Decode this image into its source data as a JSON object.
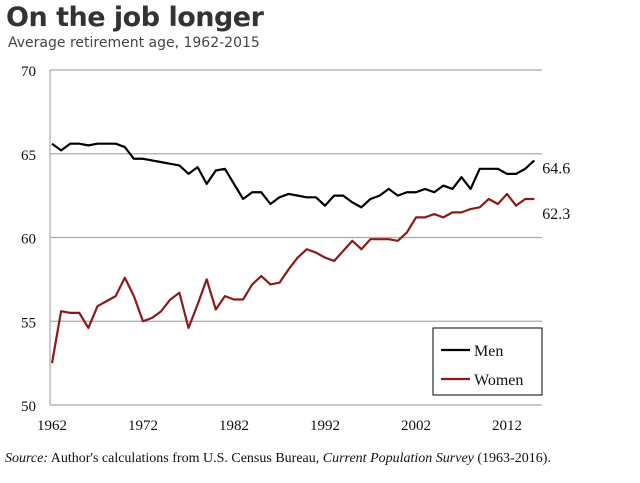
{
  "title": "On the job longer",
  "subtitle": "Average retirement age, 1962-2015",
  "source": {
    "label": "Source:",
    "text1": " Author's calculations from U.S. Census Bureau, ",
    "publication": "Current Population Survey",
    "text2": " (1963-2016)."
  },
  "chart_data": {
    "type": "line",
    "title": "On the job longer",
    "subtitle": "Average retirement age, 1962-2015",
    "xlabel": "",
    "ylabel": "",
    "xlim": [
      1962,
      2015
    ],
    "ylim": [
      50,
      70
    ],
    "xticks": [
      1962,
      1972,
      1982,
      1992,
      2002,
      2012
    ],
    "yticks": [
      50,
      55,
      60,
      65,
      70
    ],
    "grid": "horizontal",
    "legend": "bottom-right",
    "x": [
      1962,
      1963,
      1964,
      1965,
      1966,
      1967,
      1968,
      1969,
      1970,
      1971,
      1972,
      1973,
      1974,
      1975,
      1976,
      1977,
      1978,
      1979,
      1980,
      1981,
      1982,
      1983,
      1984,
      1985,
      1986,
      1987,
      1988,
      1989,
      1990,
      1991,
      1992,
      1993,
      1994,
      1995,
      1996,
      1997,
      1998,
      1999,
      2000,
      2001,
      2002,
      2003,
      2004,
      2005,
      2006,
      2007,
      2008,
      2009,
      2010,
      2011,
      2012,
      2013,
      2014,
      2015
    ],
    "series": [
      {
        "name": "Men",
        "color": "#000000",
        "end_label": "64.6",
        "values": [
          65.6,
          65.2,
          65.6,
          65.6,
          65.5,
          65.6,
          65.6,
          65.6,
          65.4,
          64.7,
          64.7,
          64.6,
          64.5,
          64.4,
          64.3,
          63.8,
          64.2,
          63.2,
          64.0,
          64.1,
          63.2,
          62.3,
          62.7,
          62.7,
          62.0,
          62.4,
          62.6,
          62.5,
          62.4,
          62.4,
          61.9,
          62.5,
          62.5,
          62.1,
          61.8,
          62.3,
          62.5,
          62.9,
          62.5,
          62.7,
          62.7,
          62.9,
          62.7,
          63.1,
          62.9,
          63.6,
          62.9,
          64.1,
          64.1,
          64.1,
          63.8,
          63.8,
          64.1,
          64.6
        ]
      },
      {
        "name": "Women",
        "color": "#8b1a1a",
        "end_label": "62.3",
        "values": [
          52.5,
          55.6,
          55.5,
          55.5,
          54.6,
          55.9,
          56.2,
          56.5,
          57.6,
          56.5,
          55.0,
          55.2,
          55.6,
          56.3,
          56.7,
          54.6,
          56.0,
          57.5,
          55.7,
          56.5,
          56.3,
          56.3,
          57.2,
          57.7,
          57.2,
          57.3,
          58.1,
          58.8,
          59.3,
          59.1,
          58.8,
          58.6,
          59.2,
          59.8,
          59.3,
          59.9,
          59.9,
          59.9,
          59.8,
          60.3,
          61.2,
          61.2,
          61.4,
          61.2,
          61.5,
          61.5,
          61.7,
          61.8,
          62.3,
          62.0,
          62.6,
          61.9,
          62.3,
          62.3
        ]
      }
    ]
  }
}
